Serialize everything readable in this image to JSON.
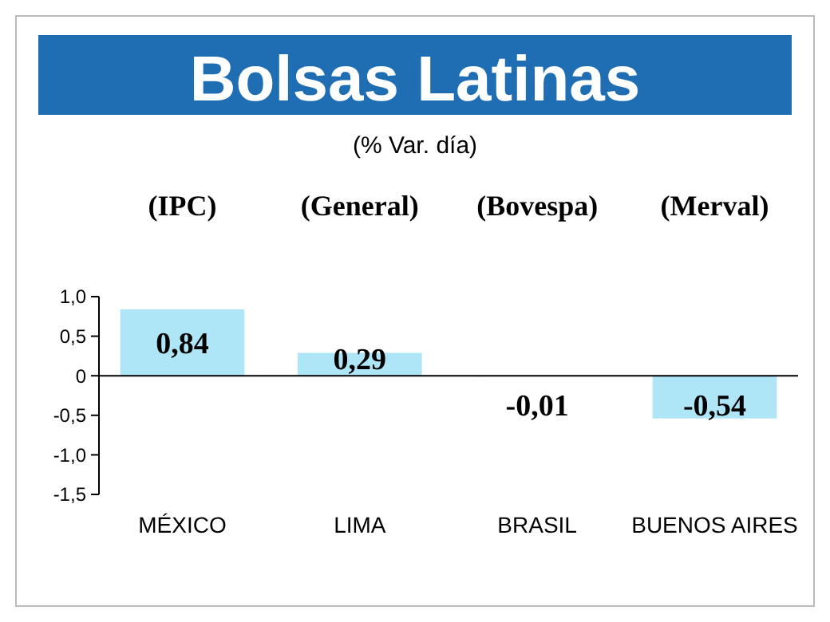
{
  "chart_data": {
    "type": "bar",
    "title": "Bolsas Latinas",
    "subtitle": "(% Var. día)",
    "categories": [
      "MÉXICO",
      "LIMA",
      "BRASIL",
      "BUENOS AIRES"
    ],
    "values": [
      0.84,
      0.29,
      -0.01,
      -0.54
    ],
    "value_labels": [
      "0,84",
      "0,29",
      "-0,01",
      "-0,54"
    ],
    "color": "#aee6f8",
    "ylim": [
      -1.5,
      1
    ],
    "yticks": [
      {
        "value": 1,
        "label": "1,0"
      },
      {
        "value": 0.5,
        "label": "0,5"
      },
      0,
      {
        "value": -0.5,
        "label": "-0,5"
      },
      {
        "value": -1,
        "label": "-1,0"
      },
      {
        "value": -1.5,
        "label": "-1,5"
      }
    ],
    "annotations": [
      "(IPC)",
      "(General)",
      "(Bovespa)",
      "(Merval)"
    ]
  }
}
